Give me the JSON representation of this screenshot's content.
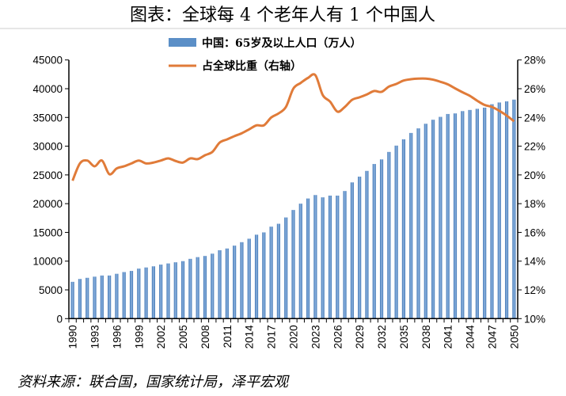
{
  "chart_data": {
    "type": "bar+line",
    "title": "图表：全球每 4 个老年人有 1 个中国人",
    "source": "资料来源：联合国，国家统计局，泽平宏观",
    "legend_position": "top-center",
    "grid": false,
    "x": [
      1990,
      1991,
      1992,
      1993,
      1994,
      1995,
      1996,
      1997,
      1998,
      1999,
      2000,
      2001,
      2002,
      2003,
      2004,
      2005,
      2006,
      2007,
      2008,
      2009,
      2010,
      2011,
      2012,
      2013,
      2014,
      2015,
      2016,
      2017,
      2018,
      2019,
      2020,
      2021,
      2022,
      2023,
      2024,
      2025,
      2026,
      2027,
      2028,
      2029,
      2030,
      2031,
      2032,
      2033,
      2034,
      2035,
      2036,
      2037,
      2038,
      2039,
      2040,
      2041,
      2042,
      2043,
      2044,
      2045,
      2046,
      2047,
      2048,
      2049,
      2050
    ],
    "x_tick_labels": [
      "1990",
      "1993",
      "1996",
      "1999",
      "2002",
      "2005",
      "2008",
      "2011",
      "2014",
      "2017",
      "2020",
      "2023",
      "2026",
      "2029",
      "2032",
      "2035",
      "2038",
      "2041",
      "2044",
      "2047",
      "2050"
    ],
    "y_left": {
      "range": [
        0,
        45000
      ],
      "ticks": [
        "0",
        "5000",
        "10000",
        "15000",
        "20000",
        "25000",
        "30000",
        "35000",
        "40000",
        "45000"
      ]
    },
    "y_right": {
      "range": [
        10,
        28
      ],
      "ticks": [
        "10%",
        "12%",
        "14%",
        "16%",
        "18%",
        "20%",
        "22%",
        "24%",
        "26%",
        "28%"
      ]
    },
    "series": [
      {
        "name": "中国：65岁及以上人口（万人）",
        "type": "bar",
        "axis": "left",
        "color": "#5b8fc7",
        "values": [
          6400,
          6900,
          7100,
          7300,
          7500,
          7500,
          7800,
          8100,
          8300,
          8700,
          8900,
          9100,
          9400,
          9600,
          9800,
          10000,
          10400,
          10700,
          10900,
          11300,
          11900,
          12200,
          12700,
          13300,
          13900,
          14600,
          15000,
          16000,
          16500,
          17600,
          18900,
          20000,
          20900,
          21500,
          21100,
          21400,
          21400,
          22200,
          23700,
          24700,
          25700,
          26900,
          27700,
          29000,
          30100,
          31200,
          32300,
          33100,
          33900,
          34600,
          35100,
          35600,
          35700,
          36100,
          36300,
          36500,
          36700,
          37300,
          37600,
          37800,
          38100
        ]
      },
      {
        "name": "占全球比重（右轴）",
        "type": "line",
        "axis": "right",
        "color": "#e07b39",
        "values": [
          19.6,
          20.8,
          21.0,
          20.6,
          21.0,
          20.05,
          20.45,
          20.6,
          20.8,
          21.0,
          20.8,
          20.86,
          21.0,
          21.15,
          20.97,
          20.86,
          21.15,
          21.1,
          21.37,
          21.6,
          22.25,
          22.47,
          22.7,
          22.9,
          23.17,
          23.45,
          23.45,
          24.0,
          24.28,
          24.73,
          26.0,
          26.4,
          26.75,
          26.94,
          25.56,
          25.1,
          24.4,
          24.73,
          25.23,
          25.4,
          25.6,
          25.84,
          25.78,
          26.15,
          26.33,
          26.57,
          26.66,
          26.7,
          26.7,
          26.63,
          26.48,
          26.3,
          26.02,
          25.75,
          25.5,
          25.16,
          24.87,
          24.73,
          24.46,
          24.13,
          23.73
        ]
      }
    ]
  }
}
